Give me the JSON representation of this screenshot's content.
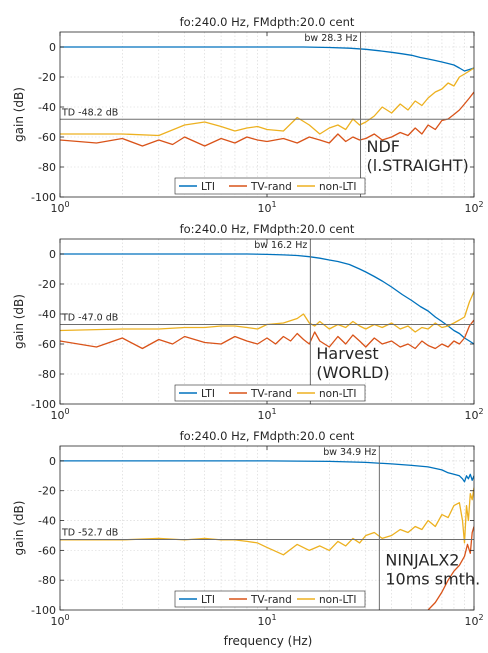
{
  "colors": {
    "LTI": "#0072BD",
    "TV-rand": "#D95319",
    "non-LTI": "#EDB120"
  },
  "xlabel": "frequency (Hz)",
  "ylabel": "gain (dB)",
  "legend": [
    "LTI",
    "TV-rand",
    "non-LTI"
  ],
  "chart_data": [
    {
      "type": "line",
      "title": "fo:240.0 Hz, FMdpth:20.0 cent",
      "xscale": "log",
      "xlim": [
        1,
        100
      ],
      "ylim": [
        -100,
        10
      ],
      "xticks": [
        "10^0",
        "10^1",
        "10^2"
      ],
      "yticks": [
        0,
        -20,
        -40,
        -60,
        -80,
        -100
      ],
      "grid": true,
      "legend_position": "bottom-center",
      "bw_label": "bw 28.3 Hz",
      "bw_value": 28.3,
      "td_label": "TD -48.2 dB",
      "td_value": -48.2,
      "annotation": [
        "NDF",
        "(l.STRAIGHT)"
      ],
      "series": [
        {
          "name": "LTI",
          "x": [
            1,
            3,
            5,
            10,
            15,
            20,
            25,
            30,
            35,
            40,
            45,
            50,
            55,
            60,
            65,
            70,
            75,
            80,
            85,
            90,
            95,
            100
          ],
          "y": [
            0,
            0,
            0,
            0,
            0,
            -0.3,
            -0.8,
            -1.5,
            -2.5,
            -3.5,
            -4.5,
            -5.5,
            -7,
            -8,
            -9,
            -10,
            -11,
            -12,
            -14,
            -16,
            -15,
            -14
          ]
        },
        {
          "name": "TV-rand",
          "x": [
            1,
            1.5,
            2,
            2.5,
            3,
            3.5,
            4,
            5,
            6,
            7,
            8,
            9,
            10,
            12,
            14,
            16,
            18,
            20,
            22,
            24,
            26,
            28,
            30,
            33,
            36,
            40,
            44,
            48,
            52,
            56,
            60,
            65,
            70,
            75,
            80,
            85,
            90,
            95,
            100
          ],
          "y": [
            -62,
            -64,
            -61,
            -66,
            -62,
            -65,
            -60,
            -66,
            -61,
            -64,
            -60,
            -62,
            -63,
            -61,
            -64,
            -60,
            -62,
            -64,
            -58,
            -63,
            -60,
            -62,
            -61,
            -58,
            -62,
            -60,
            -57,
            -59,
            -54,
            -58,
            -52,
            -55,
            -49,
            -48,
            -45,
            -42,
            -38,
            -34,
            -30
          ]
        },
        {
          "name": "non-LTI",
          "x": [
            1,
            2,
            3,
            4,
            5,
            6,
            7,
            8,
            9,
            10,
            12,
            14,
            16,
            18,
            20,
            22,
            24,
            26,
            28,
            30,
            33,
            36,
            40,
            44,
            48,
            52,
            56,
            60,
            65,
            70,
            75,
            80,
            85,
            90,
            95,
            100
          ],
          "y": [
            -58,
            -58,
            -59,
            -52,
            -50,
            -53,
            -56,
            -54,
            -53,
            -55,
            -56,
            -47,
            -52,
            -58,
            -54,
            -52,
            -55,
            -48,
            -52,
            -50,
            -46,
            -40,
            -44,
            -38,
            -42,
            -36,
            -39,
            -34,
            -30,
            -28,
            -24,
            -26,
            -20,
            -18,
            -16,
            -14
          ]
        }
      ]
    },
    {
      "type": "line",
      "title": "fo:240.0 Hz, FMdpth:20.0 cent",
      "xscale": "log",
      "xlim": [
        1,
        100
      ],
      "ylim": [
        -100,
        10
      ],
      "xticks": [
        "10^0",
        "10^1",
        "10^2"
      ],
      "yticks": [
        0,
        -20,
        -40,
        -60,
        -80,
        -100
      ],
      "grid": true,
      "legend_position": "bottom-center",
      "bw_label": "bw 16.2 Hz",
      "bw_value": 16.2,
      "td_label": "TD -47.0 dB",
      "td_value": -47.0,
      "annotation": [
        "Harvest",
        "(WORLD)"
      ],
      "series": [
        {
          "name": "LTI",
          "x": [
            1,
            3,
            5,
            8,
            10,
            12,
            14,
            16,
            18,
            20,
            22,
            25,
            28,
            30,
            33,
            36,
            40,
            45,
            50,
            55,
            60,
            65,
            70,
            75,
            80,
            85,
            90,
            95,
            100
          ],
          "y": [
            0,
            0,
            0,
            0,
            -0.3,
            -0.6,
            -1,
            -1.8,
            -2.8,
            -4,
            -5,
            -7,
            -10,
            -12,
            -15,
            -18,
            -22,
            -27,
            -31,
            -35,
            -38,
            -42,
            -45,
            -48,
            -51,
            -53,
            -56,
            -58,
            -60
          ]
        },
        {
          "name": "TV-rand",
          "x": [
            1,
            1.5,
            2,
            2.5,
            3,
            3.5,
            4,
            5,
            6,
            7,
            8,
            9,
            10,
            11,
            12,
            13,
            14,
            15,
            16,
            17,
            18,
            20,
            22,
            24,
            26,
            28,
            30,
            33,
            36,
            40,
            44,
            48,
            52,
            56,
            60,
            65,
            70,
            75,
            80,
            85,
            90,
            95,
            100
          ],
          "y": [
            -58,
            -62,
            -56,
            -63,
            -57,
            -60,
            -55,
            -59,
            -60,
            -55,
            -58,
            -60,
            -56,
            -60,
            -55,
            -58,
            -53,
            -57,
            -60,
            -52,
            -58,
            -62,
            -55,
            -60,
            -54,
            -58,
            -62,
            -56,
            -60,
            -58,
            -62,
            -60,
            -63,
            -58,
            -61,
            -63,
            -60,
            -62,
            -58,
            -60,
            -56,
            -48,
            -44
          ]
        },
        {
          "name": "non-LTI",
          "x": [
            1,
            2,
            3,
            4,
            5,
            6,
            7,
            8,
            9,
            10,
            12,
            14,
            15,
            16,
            17,
            18,
            20,
            22,
            24,
            26,
            28,
            30,
            33,
            36,
            40,
            44,
            48,
            52,
            56,
            60,
            65,
            70,
            75,
            80,
            85,
            90,
            95,
            100
          ],
          "y": [
            -51,
            -50,
            -50,
            -49,
            -49,
            -48,
            -48,
            -49,
            -50,
            -47,
            -46,
            -43,
            -40,
            -46,
            -48,
            -45,
            -50,
            -47,
            -49,
            -45,
            -48,
            -50,
            -47,
            -49,
            -46,
            -50,
            -48,
            -52,
            -49,
            -50,
            -46,
            -49,
            -48,
            -46,
            -44,
            -42,
            -32,
            -25
          ]
        }
      ]
    },
    {
      "type": "line",
      "title": "fo:240.0 Hz, FMdpth:20.0 cent",
      "xscale": "log",
      "xlim": [
        1,
        100
      ],
      "ylim": [
        -100,
        10
      ],
      "xticks": [
        "10^0",
        "10^1",
        "10^2"
      ],
      "yticks": [
        0,
        -20,
        -40,
        -60,
        -80,
        -100
      ],
      "grid": true,
      "legend_position": "bottom-center",
      "bw_label": "bw 34.9 Hz",
      "bw_value": 34.9,
      "td_label": "TD -52.7 dB",
      "td_value": -52.7,
      "annotation": [
        "NINJALX2",
        "10ms smth."
      ],
      "series": [
        {
          "name": "LTI",
          "x": [
            1,
            5,
            10,
            20,
            30,
            40,
            50,
            60,
            70,
            75,
            80,
            85,
            88,
            90,
            92,
            94,
            96,
            98,
            100
          ],
          "y": [
            0,
            0,
            0,
            -0.3,
            -1,
            -2,
            -3,
            -4,
            -6,
            -8,
            -9,
            -10,
            -12,
            -14,
            -10,
            -12,
            -9,
            -13,
            -10
          ]
        },
        {
          "name": "TV-rand",
          "x": [
            60,
            65,
            70,
            75,
            80,
            85,
            90,
            93,
            96,
            98,
            100
          ],
          "y": [
            -100,
            -95,
            -88,
            -80,
            -74,
            -70,
            -64,
            -56,
            -62,
            -48,
            -44
          ]
        },
        {
          "name": "non-LTI",
          "x": [
            1,
            2,
            3,
            4,
            5,
            6,
            7,
            8,
            9,
            10,
            12,
            14,
            16,
            18,
            20,
            22,
            24,
            26,
            28,
            30,
            33,
            36,
            40,
            44,
            48,
            52,
            56,
            60,
            65,
            70,
            75,
            80,
            85,
            88,
            90,
            92,
            94,
            96,
            98,
            100
          ],
          "y": [
            -53,
            -53,
            -52,
            -53,
            -52,
            -53,
            -53,
            -54,
            -55,
            -58,
            -63,
            -56,
            -60,
            -57,
            -60,
            -54,
            -57,
            -52,
            -55,
            -50,
            -48,
            -52,
            -50,
            -46,
            -48,
            -44,
            -46,
            -40,
            -44,
            -36,
            -38,
            -30,
            -28,
            -40,
            -55,
            -30,
            -40,
            -22,
            -26,
            -18
          ]
        }
      ]
    }
  ]
}
